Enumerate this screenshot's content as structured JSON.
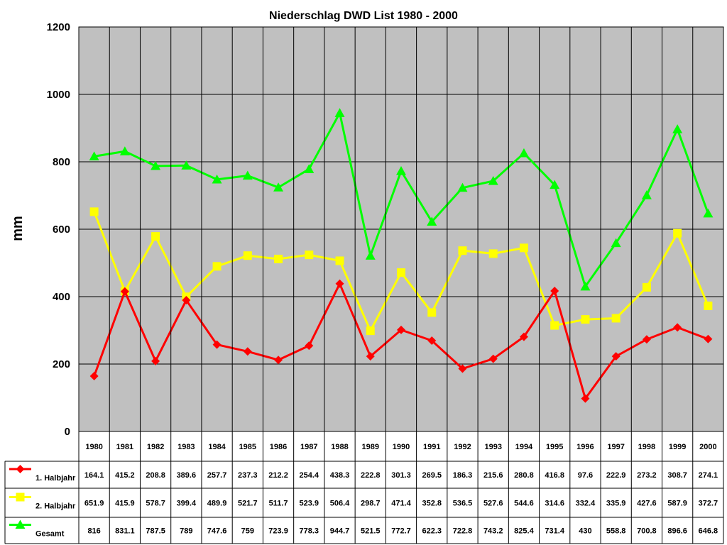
{
  "chart_data": {
    "type": "line",
    "title": "Niederschlag DWD List 1980 - 2000",
    "ylabel": "mm",
    "xlabel": "",
    "ylim": [
      0,
      1200
    ],
    "yticks": [
      0,
      200,
      400,
      600,
      800,
      1000,
      1200
    ],
    "grid": true,
    "legend": "data-table",
    "categories": [
      "1980",
      "1981",
      "1982",
      "1983",
      "1984",
      "1985",
      "1986",
      "1987",
      "1988",
      "1989",
      "1990",
      "1991",
      "1992",
      "1993",
      "1994",
      "1995",
      "1996",
      "1997",
      "1998",
      "1999",
      "2000"
    ],
    "series": [
      {
        "name": "1. Halbjahr",
        "color": "#ff0000",
        "marker": "diamond",
        "values": [
          164.1,
          415.2,
          208.8,
          389.6,
          257.7,
          237.3,
          212.2,
          254.4,
          438.3,
          222.8,
          301.3,
          269.5,
          186.3,
          215.6,
          280.8,
          416.8,
          97.6,
          222.9,
          273.2,
          308.7,
          274.1
        ],
        "labels": [
          "164.1",
          "415.2",
          "208.8",
          "389.6",
          "257.7",
          "237.3",
          "212.2",
          "254.4",
          "438.3",
          "222.8",
          "301.3",
          "269.5",
          "186.3",
          "215.6",
          "280.8",
          "416.8",
          "97.6",
          "222.9",
          "273.2",
          "308.7",
          "274.1"
        ]
      },
      {
        "name": "2. Halbjahr",
        "color": "#ffff00",
        "marker": "square",
        "values": [
          651.9,
          415.9,
          578.7,
          399.4,
          489.9,
          521.7,
          511.7,
          523.9,
          506.4,
          298.7,
          471.4,
          352.8,
          536.5,
          527.6,
          544.6,
          314.6,
          332.4,
          335.9,
          427.6,
          587.9,
          372.7
        ],
        "labels": [
          "651.9",
          "415.9",
          "578.7",
          "399.4",
          "489.9",
          "521.7",
          "511.7",
          "523.9",
          "506.4",
          "298.7",
          "471.4",
          "352.8",
          "536.5",
          "527.6",
          "544.6",
          "314.6",
          "332.4",
          "335.9",
          "427.6",
          "587.9",
          "372.7"
        ]
      },
      {
        "name": "Gesamt",
        "color": "#00ff00",
        "marker": "triangle",
        "values": [
          816,
          831.1,
          787.5,
          789,
          747.6,
          759,
          723.9,
          778.3,
          944.7,
          521.5,
          772.7,
          622.3,
          722.8,
          743.2,
          825.4,
          731.4,
          430,
          558.8,
          700.8,
          896.6,
          646.8
        ],
        "labels": [
          "816",
          "831.1",
          "787.5",
          "789",
          "747.6",
          "759",
          "723.9",
          "778.3",
          "944.7",
          "521.5",
          "772.7",
          "622.3",
          "722.8",
          "743.2",
          "825.4",
          "731.4",
          "430",
          "558.8",
          "700.8",
          "896.6",
          "646.8"
        ]
      }
    ]
  }
}
